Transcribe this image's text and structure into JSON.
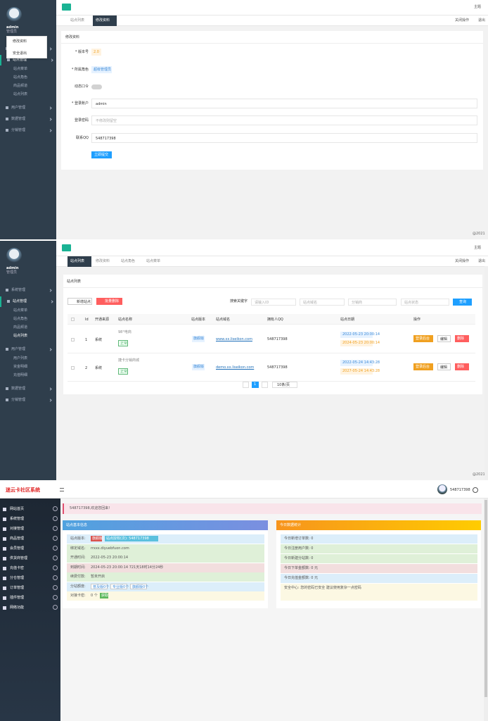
{
  "panel1": {
    "theme": "主题",
    "tabs": [
      "站点列表",
      "修改资料"
    ],
    "tab_right": [
      "关闭操作",
      "退出"
    ],
    "user": {
      "name": "admin",
      "role": "管理员"
    },
    "dropdown": [
      "修改资料",
      "安全退出"
    ],
    "menu": [
      {
        "label": "系统管理",
        "children": []
      },
      {
        "label": "站点管理",
        "children": [
          "站点菜单",
          "站点角色",
          "商品频道",
          "站点列表"
        ]
      },
      {
        "label": "用户管理",
        "children": []
      },
      {
        "label": "数据管理",
        "children": []
      },
      {
        "label": "分销管理",
        "children": []
      }
    ],
    "form": {
      "title": "修改资料",
      "fields": [
        {
          "label": "* 版本号",
          "value": "2.0"
        },
        {
          "label": "* 所属角色",
          "value": "超级管理员"
        },
        {
          "label": "动态口令"
        },
        {
          "label": "* 登录账户",
          "value": "admin"
        },
        {
          "label": "登录密码",
          "placeholder": "不修改则留空"
        },
        {
          "label": "联系QQ",
          "value": "548717398"
        }
      ],
      "submit": "立即提交"
    },
    "footer": "@2021"
  },
  "panel2": {
    "theme": "主题",
    "tabs": [
      "站点列表",
      "修改资料",
      "站点角色",
      "站点菜单"
    ],
    "tab_right": [
      "关闭操作",
      "退出"
    ],
    "user": {
      "name": "admin",
      "role": "管理员"
    },
    "menu": [
      {
        "label": "系统管理",
        "children": []
      },
      {
        "label": "站点管理",
        "children": [
          "站点菜单",
          "站点角色",
          "商品频道",
          "站点列表"
        ]
      },
      {
        "label": "用户管理",
        "children": [
          "用户列表",
          "资金明细",
          "充值明细"
        ]
      },
      {
        "label": "数据管理",
        "children": []
      },
      {
        "label": "分销管理",
        "children": []
      }
    ],
    "card_title": "站点列表",
    "buttons": [
      "新增站点",
      "批量删除"
    ],
    "search_label": "搜索关键字",
    "search_inputs": [
      "请输入ID",
      "站点域名",
      "分销商",
      "站点状态"
    ],
    "search_button": "查询",
    "table": {
      "headers": [
        "Id",
        "开通来源",
        "站点名称",
        "站点版本",
        "站点域名",
        "拥有人QQ",
        "站点日期",
        "操作"
      ],
      "rows": [
        {
          "id": "1",
          "source": "系统",
          "name": "98°电商",
          "status": "正常",
          "version": "旗舰版",
          "domain": "www.xx.liseikon.com",
          "qq": "548717398",
          "start": "2022-05-23 20:00:14",
          "end": "2024-05-23 20:00:14",
          "actions": [
            "登录后台",
            "编辑",
            "删除"
          ]
        },
        {
          "id": "2",
          "source": "系统",
          "name": "捷卡分销商城",
          "status": "正常",
          "version": "旗舰版",
          "domain": "demo.xx.liseikon.com",
          "qq": "548717398",
          "start": "2022-05-24 14:43:28",
          "end": "2027-05-24 14:43:28",
          "actions": [
            "登录后台",
            "编辑",
            "删除"
          ]
        }
      ]
    },
    "page": "1",
    "page_size": "10条/页",
    "footer": "@2021"
  },
  "panel3": {
    "title": "迷云卡社区系统",
    "user": "548717398",
    "menu": [
      "网站首页",
      "系统管理",
      "对接管理",
      "商品管理",
      "会员管理",
      "供货商管理",
      "充值卡密",
      "分仓管理",
      "订单管理",
      "插件管理",
      "网络功能"
    ],
    "notice": "548717398,欢迎您回来!",
    "site_card": {
      "title": "站点基本信息",
      "rows": [
        {
          "label": "站点版本:",
          "badges": [
            "旗舰版",
            "站点授权(次): 548717398"
          ]
        },
        {
          "label": "绑定域名:",
          "value": "rrxxx.diyuebfuon.com"
        },
        {
          "label": "开通时间:",
          "value": "2022-05-23 20:00:14"
        },
        {
          "label": "到期时间:",
          "value": "2024-05-23 20:00:14 721天18时14分24秒"
        },
        {
          "label": "续费付款:",
          "value": "暂未开启"
        },
        {
          "label": "分站额度:",
          "badges": [
            "普及版0个",
            "专业版0个",
            "旗舰版0个"
          ]
        },
        {
          "label": "对接卡密:",
          "value": "0 个",
          "badges": [
            "获取"
          ]
        }
      ]
    },
    "stats_card": {
      "title": "今日数据统计",
      "rows": [
        "今日新增订单数: 0",
        "今日注册用户数: 0",
        "今日新建分站数: 0",
        "今日下单金额数: 0 元",
        "今日充值金额数: 0 元",
        "安全中心: 您的密码已安全 建议使用复杂一点密码"
      ]
    }
  }
}
